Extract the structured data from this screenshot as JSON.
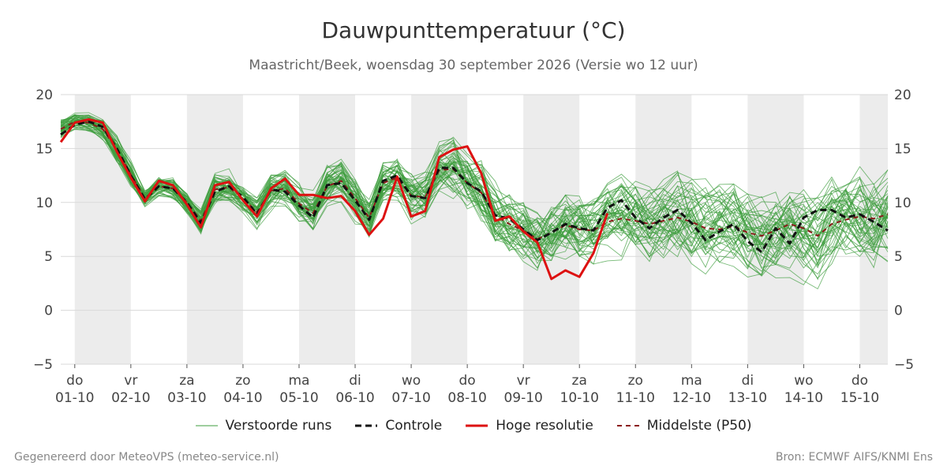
{
  "chart_data": {
    "type": "line",
    "title": "Dauwpunttemperatuur (°C)",
    "subtitle": "Maastricht/Beek, woensdag 30 september 2026 (Versie wo 12 uur)",
    "ylim": [
      -5,
      20
    ],
    "yticks": [
      "20",
      "15",
      "10",
      "5",
      "0",
      "−5"
    ],
    "ytick_values": [
      20,
      15,
      10,
      5,
      0,
      -5
    ],
    "x_start_day": -0.25,
    "x_end_day": 14.5,
    "day_labels": [
      {
        "weekday": "do",
        "date": "01-10"
      },
      {
        "weekday": "vr",
        "date": "02-10"
      },
      {
        "weekday": "za",
        "date": "03-10"
      },
      {
        "weekday": "zo",
        "date": "04-10"
      },
      {
        "weekday": "ma",
        "date": "05-10"
      },
      {
        "weekday": "di",
        "date": "06-10"
      },
      {
        "weekday": "wo",
        "date": "07-10"
      },
      {
        "weekday": "do",
        "date": "08-10"
      },
      {
        "weekday": "vr",
        "date": "09-10"
      },
      {
        "weekday": "za",
        "date": "10-10"
      },
      {
        "weekday": "zo",
        "date": "11-10"
      },
      {
        "weekday": "ma",
        "date": "12-10"
      },
      {
        "weekday": "di",
        "date": "13-10"
      },
      {
        "weekday": "wo",
        "date": "14-10"
      },
      {
        "weekday": "do",
        "date": "15-10"
      }
    ],
    "grid": true,
    "legend_position": "bottom",
    "series": [
      {
        "name": "Controle",
        "color": "#111111",
        "style": "dashed",
        "x_start": -0.25,
        "x_step": 0.25,
        "values": [
          16.3,
          17.2,
          17.5,
          17.0,
          15.0,
          12.5,
          10.3,
          11.5,
          11.3,
          10.0,
          8.1,
          11.0,
          11.5,
          10.5,
          8.9,
          11.2,
          11.0,
          9.7,
          8.6,
          11.6,
          11.8,
          10.2,
          8.4,
          12.0,
          12.5,
          10.6,
          10.4,
          13.2,
          13.2,
          11.8,
          11.0,
          8.8,
          8.5,
          7.5,
          6.5,
          7.2,
          8.0,
          7.6,
          7.4,
          9.5,
          10.2,
          8.6,
          7.6,
          8.6,
          9.3,
          8.1,
          6.5,
          7.3,
          8.0,
          6.4,
          5.4,
          7.6,
          6.2,
          8.6,
          9.3,
          9.3,
          8.6,
          8.9,
          8.2,
          7.4
        ]
      },
      {
        "name": "Hoge resolutie",
        "color": "#dd1111",
        "style": "solid",
        "x_start": -0.25,
        "x_step": 0.25,
        "values": [
          15.6,
          17.4,
          17.7,
          17.4,
          14.7,
          12.3,
          10.1,
          12.0,
          11.6,
          9.8,
          7.7,
          11.6,
          11.9,
          10.2,
          8.7,
          11.3,
          12.2,
          10.7,
          10.7,
          10.4,
          10.6,
          9.2,
          7.0,
          8.5,
          12.4,
          8.7,
          9.2,
          14.2,
          14.9,
          15.2,
          12.7,
          8.3,
          8.7,
          7.3,
          6.3,
          2.9,
          3.7,
          3.1,
          5.3,
          9.0
        ]
      },
      {
        "name": "Middelste (P50)",
        "color": "#8b1a1a",
        "style": "dashed",
        "x_start": -0.25,
        "x_step": 0.25,
        "values": [
          16.8,
          17.5,
          17.4,
          16.8,
          14.9,
          12.6,
          10.4,
          11.5,
          11.3,
          10.0,
          8.3,
          11.2,
          11.4,
          10.4,
          9.1,
          11.1,
          11.3,
          9.9,
          9.0,
          11.5,
          12.0,
          10.4,
          8.6,
          11.8,
          12.3,
          10.6,
          10.5,
          13.0,
          13.1,
          11.8,
          10.9,
          8.8,
          8.0,
          7.4,
          6.6,
          7.2,
          7.9,
          7.5,
          7.4,
          8.2,
          8.5,
          8.3,
          8.0,
          8.3,
          8.6,
          8.2,
          7.6,
          7.5,
          7.8,
          7.2,
          6.9,
          7.4,
          8.0,
          7.6,
          6.9,
          8.0,
          8.4,
          8.7,
          8.5,
          8.9
        ]
      }
    ],
    "ensemble": {
      "name": "Verstoorde runs",
      "color": "#3c9d3c",
      "member_count": 50,
      "x_start": -0.25,
      "x_step": 0.25,
      "median": [
        16.8,
        17.5,
        17.4,
        16.8,
        14.9,
        12.6,
        10.4,
        11.5,
        11.3,
        10.0,
        8.3,
        11.2,
        11.4,
        10.4,
        9.1,
        11.1,
        11.3,
        9.9,
        9.0,
        11.5,
        12.0,
        10.4,
        8.6,
        11.8,
        12.3,
        10.6,
        10.5,
        13.0,
        13.1,
        11.8,
        10.9,
        8.8,
        8.0,
        7.4,
        6.6,
        7.2,
        7.9,
        7.5,
        7.4,
        8.2,
        8.5,
        8.3,
        8.0,
        8.3,
        8.6,
        8.2,
        7.6,
        7.5,
        7.8,
        7.2,
        6.9,
        7.4,
        8.0,
        7.6,
        6.9,
        8.0,
        8.4,
        8.7,
        8.5,
        8.9
      ],
      "spread": [
        1.0,
        0.8,
        0.9,
        1.0,
        1.3,
        1.2,
        0.8,
        0.9,
        1.0,
        1.0,
        1.2,
        1.4,
        1.4,
        1.3,
        1.5,
        1.6,
        1.6,
        1.6,
        1.8,
        2.0,
        2.0,
        2.0,
        2.0,
        2.2,
        2.2,
        2.3,
        2.4,
        2.5,
        2.6,
        2.8,
        3.0,
        3.0,
        3.0,
        3.0,
        3.1,
        3.2,
        3.3,
        3.4,
        3.4,
        3.5,
        3.5,
        3.6,
        3.6,
        3.7,
        3.7,
        3.8,
        3.8,
        3.8,
        3.9,
        4.0,
        4.0,
        4.0,
        4.1,
        4.2,
        4.2,
        4.3,
        4.3,
        4.4,
        4.5,
        4.6
      ]
    }
  },
  "legend": {
    "perturbed": "Verstoorde runs",
    "control": "Controle",
    "high_res": "Hoge resolutie",
    "median": "Middelste (P50)"
  },
  "footer": {
    "left": "Gegenereerd door MeteoVPS (meteo-service.nl)",
    "right": "Bron: ECMWF AIFS/KNMI Ens"
  },
  "colors": {
    "weekend_band": "#ececec",
    "gridline": "#d9d9d9"
  }
}
